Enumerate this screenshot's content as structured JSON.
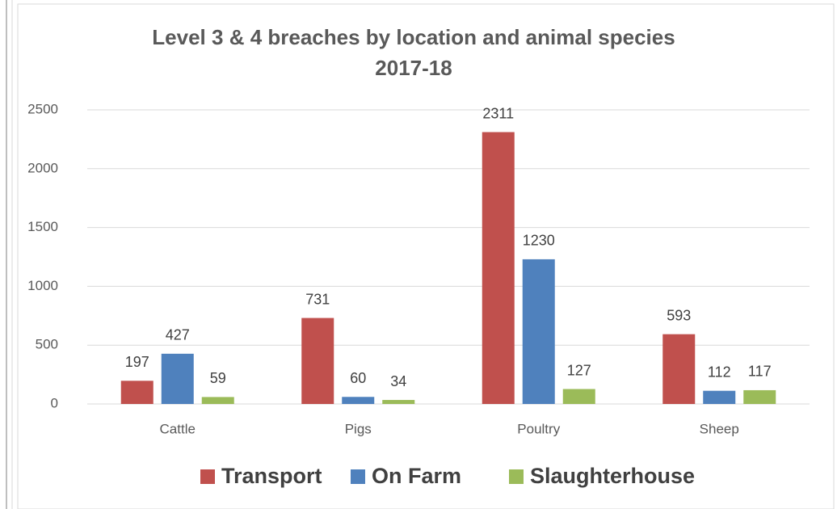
{
  "chart_data": {
    "type": "bar",
    "title": [
      "Level 3 & 4 breaches by location and animal species",
      "2017-18"
    ],
    "categories": [
      "Cattle",
      "Pigs",
      "Poultry",
      "Sheep"
    ],
    "series": [
      {
        "name": "Transport",
        "color": "#c0504d",
        "values": [
          197,
          731,
          2311,
          593
        ]
      },
      {
        "name": "On Farm",
        "color": "#4f81bd",
        "values": [
          427,
          60,
          1230,
          112
        ]
      },
      {
        "name": "Slaughterhouse",
        "color": "#9bbb59",
        "values": [
          59,
          34,
          127,
          117
        ]
      }
    ],
    "ylim": [
      0,
      2500
    ],
    "yticks": [
      0,
      500,
      1000,
      1500,
      2000,
      2500
    ],
    "grid": true,
    "legend": "bottom"
  }
}
